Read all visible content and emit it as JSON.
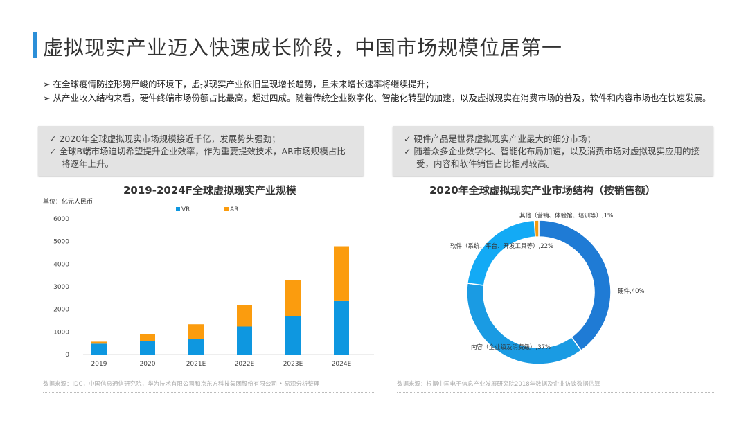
{
  "title": "虚拟现实产业迈入快速成长阶段，中国市场规模位居第一",
  "bullets": [
    "➢ 在全球疫情防控形势严峻的环境下，虚拟现实产业依旧呈现增长趋势，且未来增长速率将继续提升；",
    "➢ 从产业收入结构来看，硬件终端市场份额占比最高，超过四成。随着传统企业数字化、智能化转型的加速，以及虚拟现实在消费市场的普及，软件和内容市场也在快速发展。"
  ],
  "box_left": [
    "✓  2020年全球虚拟现实市场规模接近千亿，发展势头强劲；",
    "✓  全球B端市场迫切希望提升企业效率，作为重要提效技术，AR市场规模占比将逐年上升。"
  ],
  "box_right": [
    "✓  硬件产品是世界虚拟现实产业最大的细分市场；",
    "✓  随着众多企业数字化、智能化布局加速，以及消费市场对虚拟现实应用的接受，内容和软件销售占比相对较高。"
  ],
  "chart_data": [
    {
      "type": "bar",
      "stacked": true,
      "title": "2019-2024F全球虚拟现实产业规模",
      "unit": "单位：亿元人民币",
      "categories": [
        "2019",
        "2020",
        "2021E",
        "2022E",
        "2023E",
        "2024E"
      ],
      "series": [
        {
          "name": "VR",
          "color": "#0e97e0",
          "values": [
            480,
            600,
            680,
            1240,
            1690,
            2390
          ]
        },
        {
          "name": "AR",
          "color": "#fb9c0e",
          "values": [
            90,
            290,
            660,
            950,
            1610,
            2400
          ]
        }
      ],
      "yticks": [
        "0",
        "1000",
        "2000",
        "3000",
        "4000",
        "5000",
        "6000"
      ],
      "ylim": [
        0,
        6000
      ],
      "legend": "top",
      "source": "数据来源：IDC，中国信息通信研究院，华为技术有限公司和京东方科技集团股份有限公司 • 易观分析整理"
    },
    {
      "type": "pie",
      "donut": true,
      "title": "2020年全球虚拟现实产业市场结构（按销售额）",
      "slices": [
        {
          "label": "硬件,40%",
          "value": 40,
          "color": "#1f7bd5"
        },
        {
          "label": "内容（企业级及消费级）,37%",
          "value": 37,
          "color": "#1a9be3"
        },
        {
          "label": "软件（系统、平台、开发工具等）,22%",
          "value": 22,
          "color": "#13aaf5"
        },
        {
          "label": "其他（营销、体验馆、培训等）,1%",
          "value": 1,
          "color": "#f39c12"
        }
      ],
      "source": "数据来源：根据中国电子信息产业发展研究院2018年数据及企业访谈数据估算"
    }
  ]
}
